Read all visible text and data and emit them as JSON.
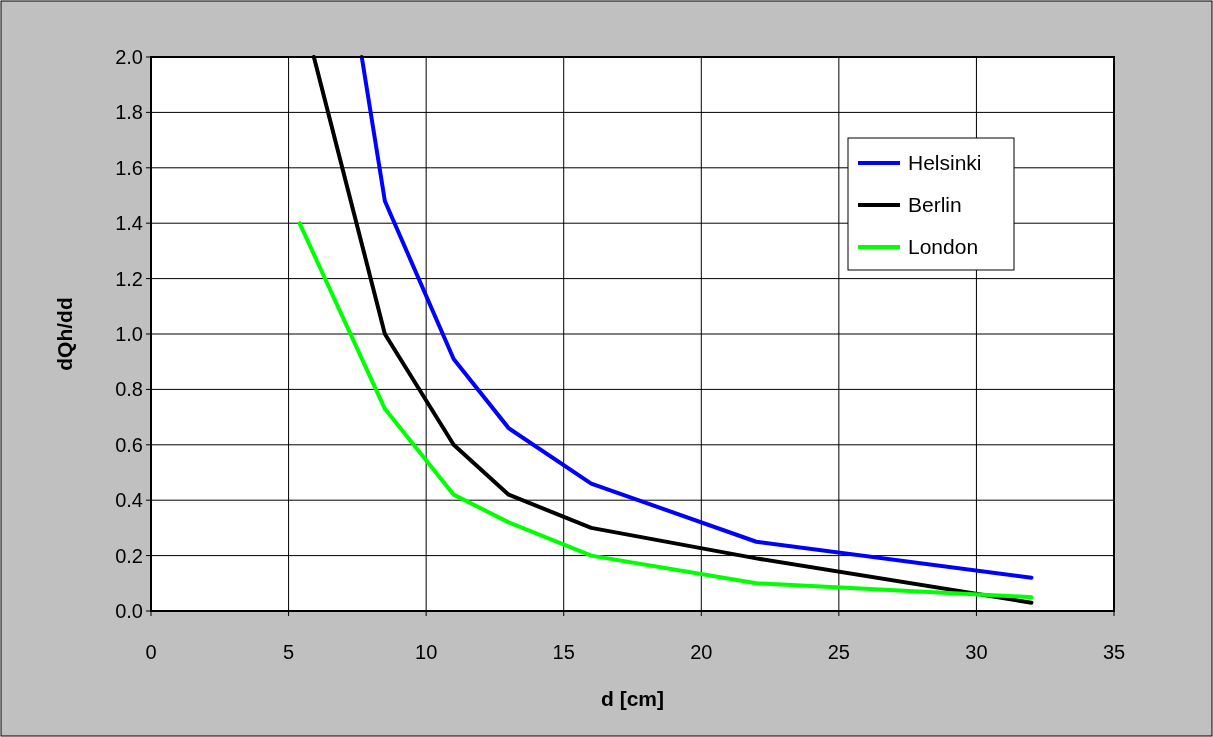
{
  "chart_data": {
    "type": "line",
    "xlabel": "d [cm]",
    "ylabel": "dQh/dd",
    "xlim": [
      0,
      35
    ],
    "xticks": [
      0,
      5,
      10,
      15,
      20,
      25,
      30,
      35
    ],
    "ylim": [
      0,
      2
    ],
    "yticks": [
      {
        "value": 0,
        "label": "0.0"
      },
      {
        "value": 0.2,
        "label": "0.2"
      },
      {
        "value": 0.4,
        "label": "0.4"
      },
      {
        "value": 0.6,
        "label": "0.6"
      },
      {
        "value": 0.8,
        "label": "0.8"
      },
      {
        "value": 1,
        "label": "1.0"
      },
      {
        "value": 1.2,
        "label": "1.2"
      },
      {
        "value": 1.4,
        "label": "1.4"
      },
      {
        "value": 1.6,
        "label": "1.6"
      },
      {
        "value": 1.8,
        "label": "1.8"
      },
      {
        "value": 2,
        "label": "2.0"
      }
    ],
    "grid": true,
    "legend": "top right",
    "marker": "none",
    "line_style": "solid",
    "series": [
      {
        "name": "Helsinki",
        "color": "#0000ff",
        "x": [
          7.66,
          8.5,
          11,
          13,
          16,
          22,
          32
        ],
        "values": [
          2.0,
          1.48,
          0.91,
          0.66,
          0.46,
          0.25,
          0.12
        ]
      },
      {
        "name": "Berlin",
        "color": "#000000",
        "x": [
          5.92,
          8.5,
          11,
          13,
          16,
          22,
          32
        ],
        "values": [
          2.0,
          1.0,
          0.6,
          0.42,
          0.3,
          0.19,
          0.03
        ]
      },
      {
        "name": "London",
        "color": "#00ff00",
        "x": [
          5.4,
          8.5,
          11,
          13,
          16,
          22,
          32
        ],
        "values": [
          1.4,
          0.73,
          0.42,
          0.32,
          0.2,
          0.1,
          0.05
        ]
      }
    ]
  }
}
